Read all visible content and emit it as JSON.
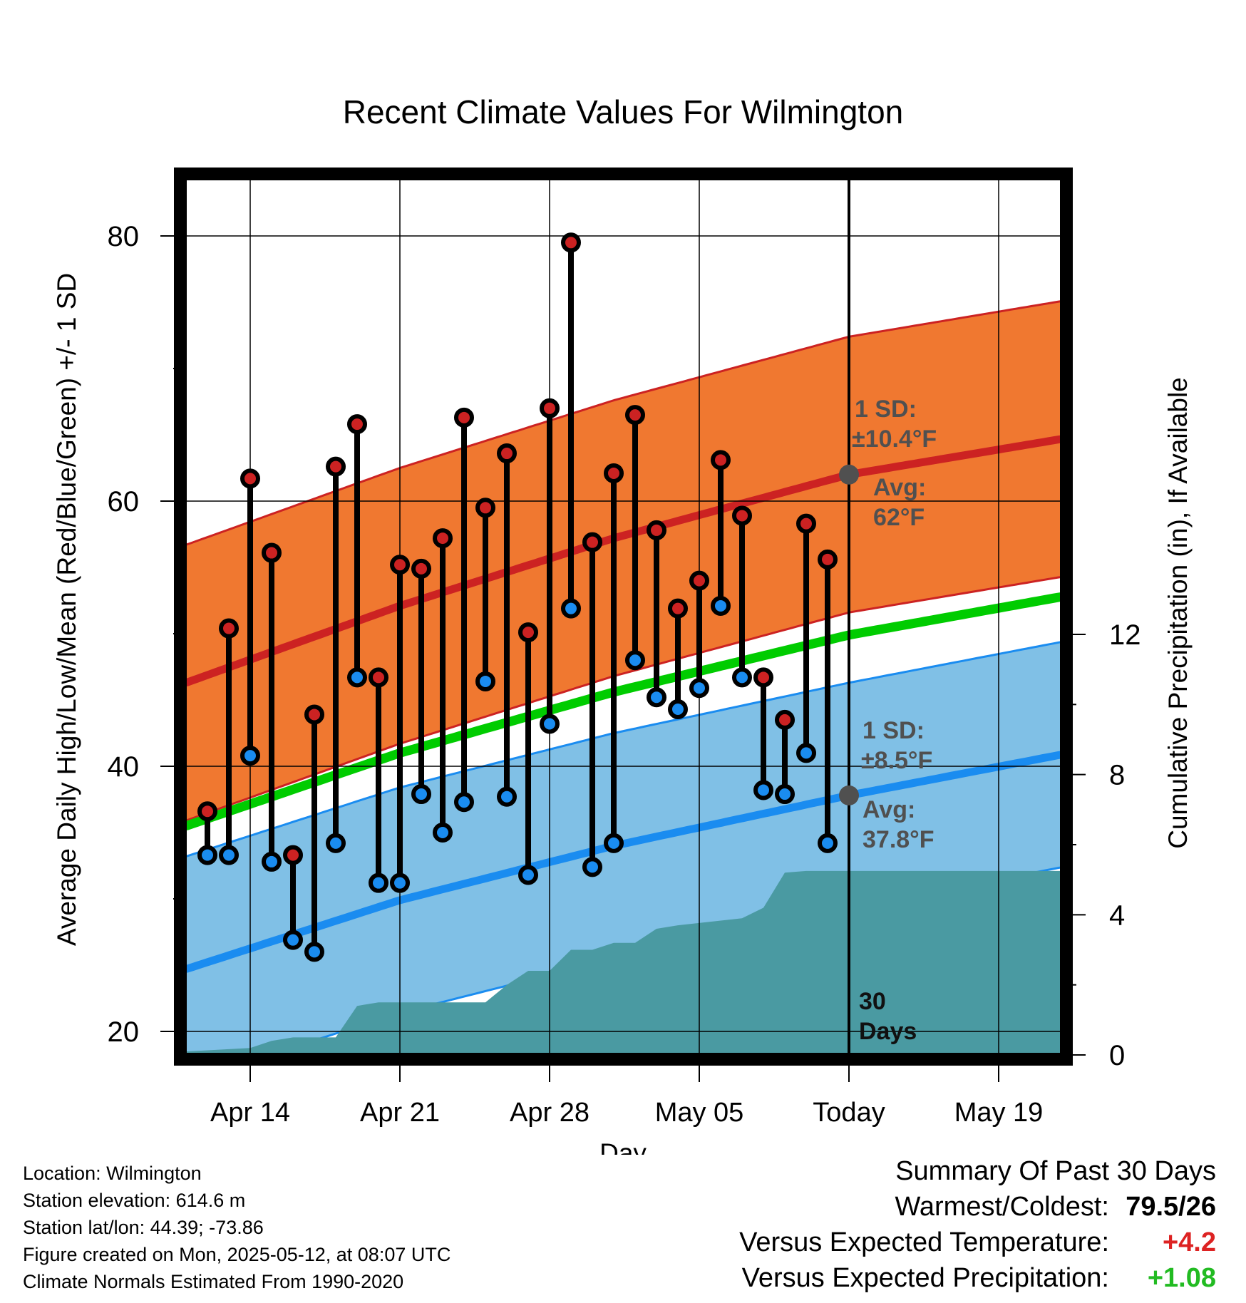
{
  "chart_data": {
    "type": "line",
    "title": "Recent Climate Values For Wilmington",
    "xlabel": "Day",
    "ylabel_left": "Average Daily High/Low/Mean (Red/Blue/Green) +/- 1 SD",
    "ylabel_right": "Cumulative Precipitation (in), If Available",
    "x_tick_labels": [
      "Apr 14",
      "Apr 21",
      "Apr 28",
      "May 05",
      "Today",
      "May 19"
    ],
    "left_y_ticks": [
      "20",
      "40",
      "60",
      "80"
    ],
    "right_y_ticks": [
      "0",
      "4",
      "8",
      "12"
    ],
    "ylim_left": [
      18.5,
      83
    ],
    "ylim_right": [
      0,
      24.9
    ],
    "x_range_days": [
      "2025-04-11",
      "2025-05-22"
    ],
    "today": "2025-05-12",
    "observed": [
      {
        "date": "2025-04-12",
        "high": 36.6,
        "low": 33.3
      },
      {
        "date": "2025-04-13",
        "high": 50.4,
        "low": 33.3
      },
      {
        "date": "2025-04-14",
        "high": 61.7,
        "low": 40.8
      },
      {
        "date": "2025-04-15",
        "high": 56.1,
        "low": 32.8
      },
      {
        "date": "2025-04-16",
        "high": 33.3,
        "low": 26.9
      },
      {
        "date": "2025-04-17",
        "high": 43.9,
        "low": 26.0
      },
      {
        "date": "2025-04-18",
        "high": 62.6,
        "low": 34.2
      },
      {
        "date": "2025-04-19",
        "high": 65.8,
        "low": 46.7
      },
      {
        "date": "2025-04-20",
        "high": 46.7,
        "low": 31.2
      },
      {
        "date": "2025-04-21",
        "high": 55.2,
        "low": 31.2
      },
      {
        "date": "2025-04-22",
        "high": 54.9,
        "low": 37.9
      },
      {
        "date": "2025-04-23",
        "high": 57.2,
        "low": 35.0
      },
      {
        "date": "2025-04-24",
        "high": 66.3,
        "low": 37.3
      },
      {
        "date": "2025-04-25",
        "high": 59.5,
        "low": 46.4
      },
      {
        "date": "2025-04-26",
        "high": 63.6,
        "low": 37.7
      },
      {
        "date": "2025-04-27",
        "high": 50.1,
        "low": 31.8
      },
      {
        "date": "2025-04-28",
        "high": 67.0,
        "low": 43.2
      },
      {
        "date": "2025-04-29",
        "high": 79.5,
        "low": 51.9
      },
      {
        "date": "2025-04-30",
        "high": 56.9,
        "low": 32.4
      },
      {
        "date": "2025-05-01",
        "high": 62.1,
        "low": 34.2
      },
      {
        "date": "2025-05-02",
        "high": 66.5,
        "low": 48.0
      },
      {
        "date": "2025-05-03",
        "high": 57.8,
        "low": 45.2
      },
      {
        "date": "2025-05-04",
        "high": 51.9,
        "low": 44.3
      },
      {
        "date": "2025-05-05",
        "high": 54.0,
        "low": 45.9
      },
      {
        "date": "2025-05-06",
        "high": 63.1,
        "low": 52.1
      },
      {
        "date": "2025-05-07",
        "high": 58.9,
        "low": 46.7
      },
      {
        "date": "2025-05-08",
        "high": 46.7,
        "low": 38.2
      },
      {
        "date": "2025-05-09",
        "high": 43.5,
        "low": 37.9
      },
      {
        "date": "2025-05-10",
        "high": 58.3,
        "low": 41.0
      },
      {
        "date": "2025-05-11",
        "high": 55.6,
        "low": 34.2
      }
    ],
    "normals": {
      "dates": [
        "2025-04-11",
        "2025-04-21",
        "2025-05-01",
        "2025-05-12",
        "2025-05-22"
      ],
      "high_avg": [
        46.3,
        52.1,
        57.2,
        62.0,
        64.7
      ],
      "high_sd": 10.4,
      "low_avg": [
        24.7,
        29.9,
        34.0,
        37.8,
        40.9
      ],
      "low_sd": 8.5,
      "mean_avg": [
        35.5,
        41.0,
        45.6,
        49.9,
        52.8
      ]
    },
    "cumulative_precip": {
      "dates": [
        "2025-04-11",
        "2025-04-14",
        "2025-04-15",
        "2025-04-16",
        "2025-04-17",
        "2025-04-18",
        "2025-04-19",
        "2025-04-20",
        "2025-04-25",
        "2025-04-26",
        "2025-04-27",
        "2025-04-28",
        "2025-04-29",
        "2025-04-30",
        "2025-05-01",
        "2025-05-02",
        "2025-05-03",
        "2025-05-04",
        "2025-05-07",
        "2025-05-08",
        "2025-05-09",
        "2025-05-10",
        "2025-05-22"
      ],
      "values": [
        0.1,
        0.2,
        0.4,
        0.5,
        0.5,
        0.5,
        1.4,
        1.5,
        1.5,
        2.0,
        2.4,
        2.4,
        3.0,
        3.0,
        3.2,
        3.2,
        3.6,
        3.7,
        3.9,
        4.2,
        5.2,
        5.25,
        5.25
      ]
    },
    "annotations": {
      "high_sd_label": "1 SD:",
      "high_sd_value": "±10.4°F",
      "high_avg_label": "Avg:",
      "high_avg_value": "62°F",
      "low_sd_label": "1 SD:",
      "low_sd_value": "±8.5°F",
      "low_avg_label": "Avg:",
      "low_avg_value": "37.8°F",
      "days_line1": "30",
      "days_line2": "Days"
    },
    "colors": {
      "high": "#cc2222",
      "high_band": "#f07830",
      "low": "#1a8cf0",
      "low_band": "#80c0e6",
      "mean": "#00cc00",
      "precip": "#4a9aa2",
      "high_marker": "#cc2222",
      "low_marker": "#1a8cf0",
      "annotation": "#505050"
    }
  },
  "footer": {
    "location": "Location: Wilmington",
    "elevation": "Station elevation: 614.6 m",
    "latlon": "Station lat/lon: 44.39; -73.86",
    "created": "Figure created on Mon, 2025-05-12, at 08:07 UTC",
    "normals_source": "Climate Normals Estimated From 1990-2020"
  },
  "summary": {
    "title": "Summary Of Past 30 Days",
    "warm_cold_label": "Warmest/Coldest:",
    "warm_cold_value": "79.5/26",
    "temp_label": "Versus Expected Temperature:",
    "temp_value": "+4.2",
    "temp_color": "#dd2222",
    "precip_label": "Versus Expected Precipitation:",
    "precip_value": "+1.08",
    "precip_color": "#22bb22"
  }
}
